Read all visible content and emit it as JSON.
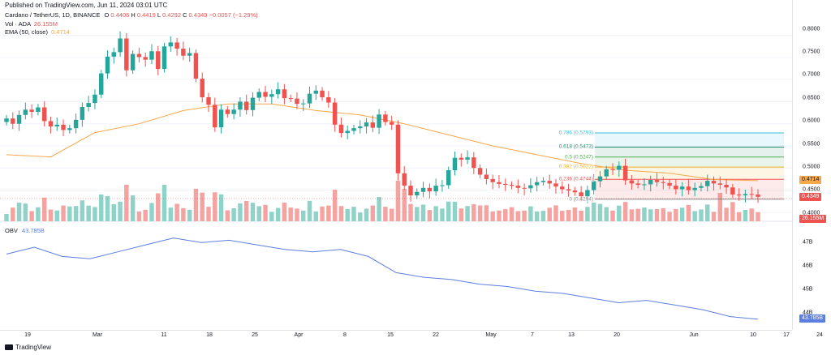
{
  "header": {
    "published": "Published on TradingView.com, Jun 11, 2024 03:01 UTC",
    "symbol": "Cardano / TetherUS, 1D, BINANCE",
    "o_label": "O",
    "o": "0.4406",
    "h_label": "H",
    "h": "0.4419",
    "l_label": "L",
    "l": "0.4292",
    "c_label": "C",
    "c": "0.4349",
    "change": "−0.0057 (−1.29%)",
    "vol_label": "Vol · ADA",
    "vol": "26.155M",
    "ema_label": "EMA (50, close)",
    "ema": "0.4714",
    "obv_label": "OBV",
    "obv": "43.785B"
  },
  "colors": {
    "up": "#26a69a",
    "down": "#ef5350",
    "ema": "#f7a84a",
    "obv": "#5b7fe0",
    "vol_up": "#8ed2c8",
    "vol_down": "#f5a3a1"
  },
  "price_axis": {
    "ticks": [
      "0.8000",
      "0.7500",
      "0.7000",
      "0.6500",
      "0.6000",
      "0.5500",
      "0.5000",
      "0.4500",
      "0.4000"
    ],
    "ema_tag": "0.4714",
    "price_tag": "0.4349",
    "vol_tag": "26.155M"
  },
  "obv_axis": {
    "ticks": [
      "47B",
      "46B",
      "45B",
      "44B"
    ],
    "tag": "43.785B"
  },
  "time_axis": {
    "ticks": [
      "19",
      "Mar",
      "11",
      "18",
      "25",
      "Apr",
      "8",
      "15",
      "22",
      "May",
      "7",
      "13",
      "20",
      "Jun",
      "10",
      "17",
      "24"
    ]
  },
  "fib": {
    "levels": [
      {
        "label": "0.786 (0.5793)",
        "color": "#3ac0e0",
        "value": 0.5793
      },
      {
        "label": "0.618 (0.5473)",
        "color": "#1f8f6e",
        "value": 0.5473
      },
      {
        "label": "0.5 (0.5247)",
        "color": "#4caf50",
        "value": 0.5247
      },
      {
        "label": "0.382 (0.5022)",
        "color": "#f0b429",
        "value": 0.5022
      },
      {
        "label": "0.236 (0.4744)",
        "color": "#ef5350",
        "value": 0.4744
      },
      {
        "label": "0 (0.4294)",
        "color": "#888888",
        "value": 0.4294
      }
    ]
  },
  "chart_data": {
    "type": "candlestick",
    "title": "Cardano / TetherUS, 1D, BINANCE",
    "price_range": [
      0.385,
      0.825
    ],
    "closes": [
      0.612,
      0.6,
      0.62,
      0.632,
      0.627,
      0.637,
      0.606,
      0.594,
      0.598,
      0.586,
      0.59,
      0.609,
      0.638,
      0.647,
      0.666,
      0.714,
      0.752,
      0.762,
      0.793,
      0.721,
      0.758,
      0.751,
      0.745,
      0.764,
      0.724,
      0.775,
      0.784,
      0.77,
      0.754,
      0.76,
      0.702,
      0.66,
      0.643,
      0.592,
      0.632,
      0.622,
      0.632,
      0.65,
      0.631,
      0.659,
      0.672,
      0.661,
      0.667,
      0.678,
      0.658,
      0.657,
      0.645,
      0.646,
      0.668,
      0.675,
      0.66,
      0.648,
      0.598,
      0.579,
      0.584,
      0.59,
      0.594,
      0.603,
      0.591,
      0.621,
      0.604,
      0.598,
      0.488,
      0.46,
      0.438,
      0.446,
      0.455,
      0.447,
      0.46,
      0.461,
      0.495,
      0.523,
      0.519,
      0.524,
      0.5,
      0.485,
      0.475,
      0.468,
      0.464,
      0.462,
      0.46,
      0.455,
      0.454,
      0.461,
      0.468,
      0.471,
      0.465,
      0.458,
      0.452,
      0.449,
      0.445,
      0.436,
      0.45,
      0.47,
      0.481,
      0.497,
      0.496,
      0.505,
      0.472,
      0.465,
      0.462,
      0.463,
      0.473,
      0.468,
      0.466,
      0.46,
      0.452,
      0.458,
      0.45,
      0.455,
      0.459,
      0.471,
      0.465,
      0.462,
      0.456,
      0.44,
      0.438,
      0.441,
      0.44,
      0.4349
    ],
    "ema_values": [
      0.53,
      0.525,
      0.58,
      0.6,
      0.63,
      0.645,
      0.645,
      0.63,
      0.62,
      0.6,
      0.575,
      0.55,
      0.53,
      0.51,
      0.495,
      0.488,
      0.474,
      0.4714
    ],
    "obv_values": [
      46.6,
      46.9,
      46.5,
      46.4,
      46.7,
      47.0,
      47.3,
      47.1,
      47.2,
      47.0,
      46.8,
      46.7,
      46.8,
      46.5,
      45.8,
      45.6,
      45.5,
      45.3,
      45.2,
      45.0,
      44.9,
      44.7,
      44.5,
      44.6,
      44.4,
      44.2,
      43.9,
      43.785
    ],
    "volume_range_M": [
      0,
      1200
    ]
  },
  "footer": {
    "brand": "TradingView"
  }
}
